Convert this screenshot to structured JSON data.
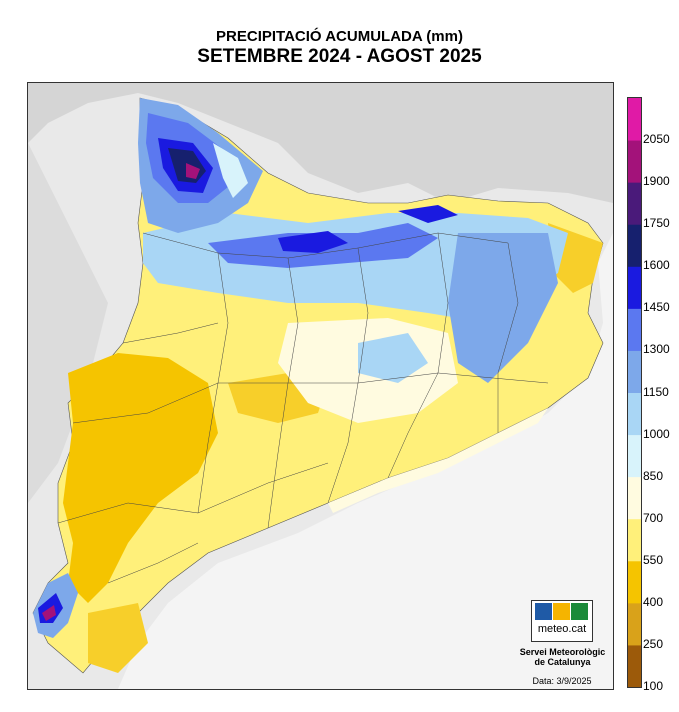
{
  "title_line1": "PRECIPITACIÓ ACUMULADA (mm)",
  "title_line2": "SETEMBRE 2024 - AGOST 2025",
  "legend": {
    "ticks": [
      "2050",
      "1900",
      "1750",
      "1600",
      "1450",
      "1300",
      "1150",
      "1000",
      "850",
      "700",
      "550",
      "400",
      "250",
      "100"
    ],
    "colors": [
      "#9c5a0a",
      "#d9a21a",
      "#f5c400",
      "#fff07a",
      "#fffbe0",
      "#d8f3fb",
      "#a9d6f5",
      "#7da8ea",
      "#5b78f0",
      "#1a1ae0",
      "#16206e",
      "#4a1a7a",
      "#a3127a",
      "#e01aa6"
    ]
  },
  "logo": {
    "text": "meteo.cat",
    "colors": [
      "#1f5aa6",
      "#f5b400",
      "#1b8a3a"
    ]
  },
  "credit": {
    "line1": "Servei Meteorològic",
    "line2": "de Catalunya"
  },
  "date_text": "Data: 3/9/2025"
}
